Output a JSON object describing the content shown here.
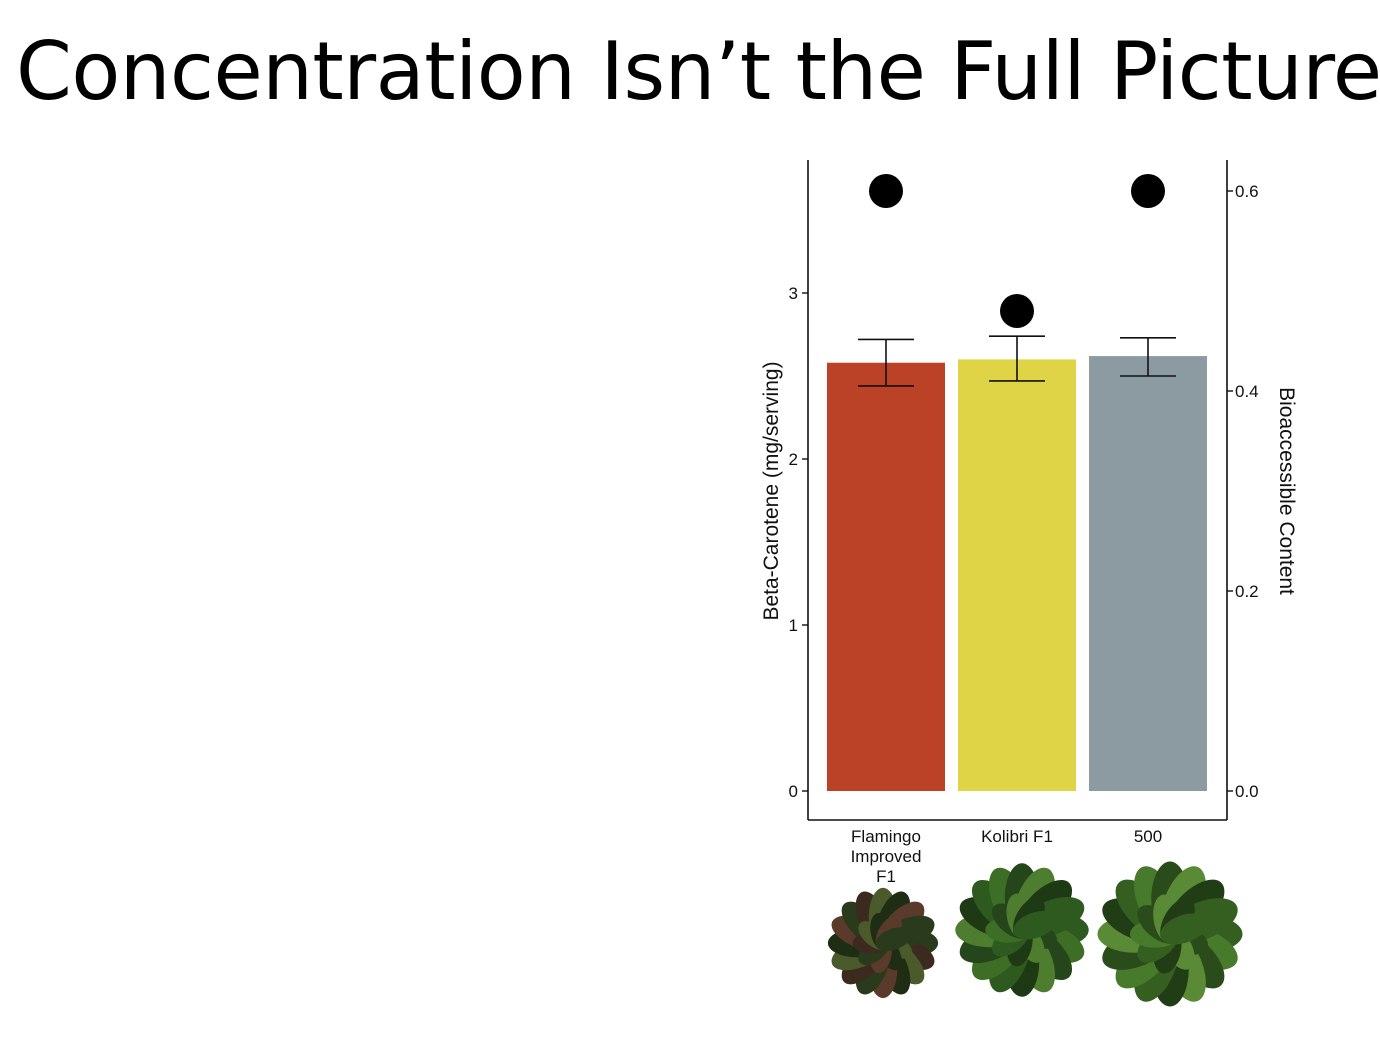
{
  "slide": {
    "title": "Concentration Isn’t the Full Picture"
  },
  "chart_data": {
    "type": "bar",
    "categories": [
      "Flamingo Improved F1",
      "Kolibri F1",
      "500"
    ],
    "category_label_lines": [
      [
        "Flamingo",
        "Improved",
        "F1"
      ],
      [
        "Kolibri F1"
      ],
      [
        "500"
      ]
    ],
    "series": [
      {
        "type": "bar",
        "axis": "left",
        "values": [
          2.58,
          2.6,
          2.62
        ],
        "error": [
          [
            2.44,
            2.72
          ],
          [
            2.47,
            2.74
          ],
          [
            2.5,
            2.73
          ]
        ],
        "colors": [
          "#bb4226",
          "#dfd446",
          "#8c9ba2"
        ]
      },
      {
        "type": "scatter",
        "axis": "right",
        "values": [
          0.6,
          0.48,
          0.6
        ],
        "color": "#000000"
      }
    ],
    "ylabel": "Beta-Carotene (mg/serving)",
    "y2label": "Bioaccessible Content",
    "ylim": [
      0,
      3.8
    ],
    "y2lim": [
      0,
      0.63
    ],
    "yticks": [
      0,
      1,
      2,
      3
    ],
    "y2ticks": [
      "0.0",
      "0.2",
      "0.4",
      "0.6"
    ],
    "grid": false,
    "legend": "none"
  },
  "images": [
    {
      "depicts": "spinach-plant-flamingo-icon"
    },
    {
      "depicts": "spinach-plant-kolibri-icon"
    },
    {
      "depicts": "spinach-plant-500-icon"
    }
  ]
}
